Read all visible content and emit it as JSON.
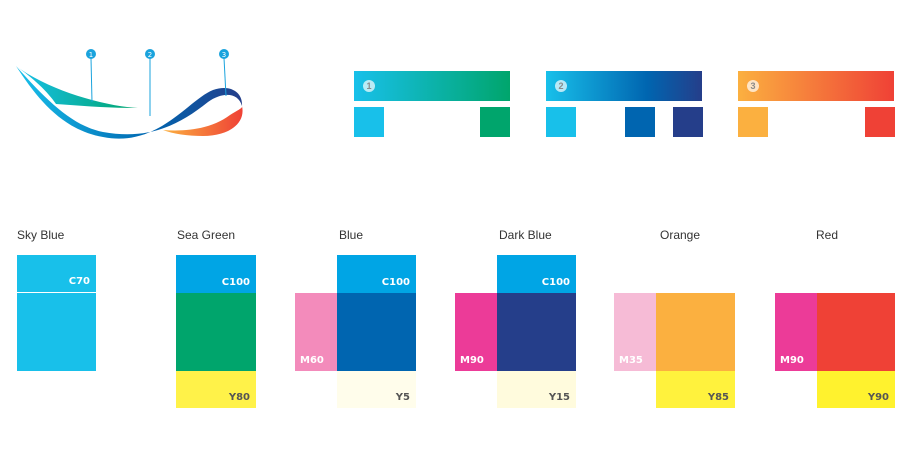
{
  "logo": {
    "markers": [
      "1",
      "2",
      "3"
    ],
    "colors": {
      "marker": "#1aa3dd"
    }
  },
  "gradient_bars": [
    {
      "number": "1",
      "from": "#18c0ea",
      "to": "#00a56c",
      "swatches": [
        "#18c0ea",
        "#00a56c"
      ]
    },
    {
      "number": "2",
      "from": "#18c0ea",
      "to": "#253e8a",
      "swatches": [
        "#18c0ea",
        "#0065b0",
        "#253e8a"
      ]
    },
    {
      "number": "3",
      "from": "#fbb040",
      "to": "#ef4136",
      "swatches": [
        "#fbb040",
        "#ef4136"
      ]
    }
  ],
  "palette": [
    {
      "name": "Sky Blue",
      "top_code": "C70",
      "top_color": "#18c0ea",
      "left_code": "",
      "bottom_code": ""
    },
    {
      "name": "Sea Green",
      "top_code": "C100",
      "top_color": "#00a5e5",
      "main_color": "#00a56c",
      "bottom_code": "Y80",
      "bottom_color": "#fff249"
    },
    {
      "name": "Blue",
      "top_code": "C100",
      "top_color": "#00a5e5",
      "main_color": "#0065b0",
      "left_code": "M60",
      "left_color": "#f38bbb",
      "bottom_code": "Y5",
      "bottom_color": "#fffdeb"
    },
    {
      "name": "Dark Blue",
      "top_code": "C100",
      "top_color": "#00a5e5",
      "main_color": "#253e8a",
      "left_code": "M90",
      "left_color": "#ec3b98",
      "bottom_code": "Y15",
      "bottom_color": "#fffbdd"
    },
    {
      "name": "Orange",
      "main_color": "#fbb040",
      "left_code": "M35",
      "left_color": "#f6bbd6",
      "bottom_code": "Y85",
      "bottom_color": "#fff23d"
    },
    {
      "name": "Red",
      "main_color": "#ef4136",
      "left_code": "M90",
      "left_color": "#ec3b98",
      "bottom_code": "Y90",
      "bottom_color": "#fff22e"
    }
  ]
}
